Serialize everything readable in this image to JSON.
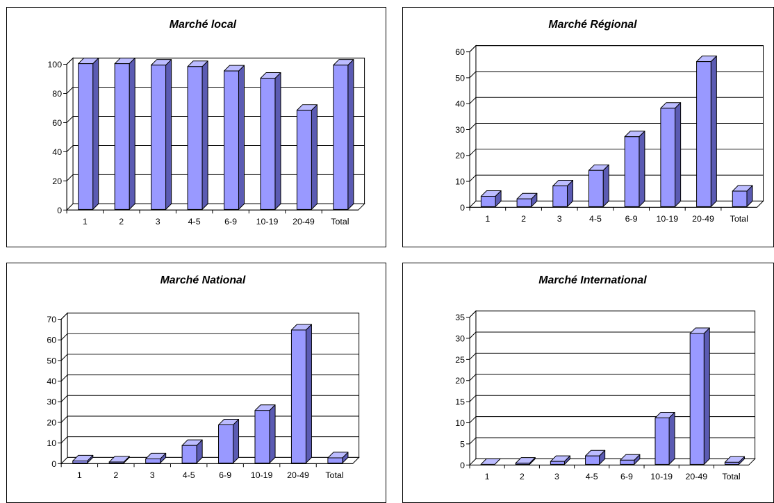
{
  "colors": {
    "bar_front": "#9999ff",
    "bar_side": "#5b5bb3",
    "bar_top": "#bcbcff",
    "bar_stroke": "#000000",
    "plot_background": "#ffffff",
    "gridline": "#000000",
    "floor": "#c0c0c0"
  },
  "chart_data": [
    {
      "type": "bar",
      "variant": "3d-column",
      "title": "Marché local",
      "categories": [
        "1",
        "2",
        "3",
        "4-5",
        "6-9",
        "10-19",
        "20-49",
        "Total"
      ],
      "values": [
        100,
        100,
        99,
        98,
        95,
        90,
        68,
        99
      ],
      "ylim": [
        0,
        100
      ],
      "yticks": [
        0,
        20,
        40,
        60,
        80,
        100
      ],
      "xlabel": "",
      "ylabel": "",
      "grid": true,
      "legend": false
    },
    {
      "type": "bar",
      "variant": "3d-column",
      "title": "Marché Régional",
      "categories": [
        "1",
        "2",
        "3",
        "4-5",
        "6-9",
        "10-19",
        "20-49",
        "Total"
      ],
      "values": [
        4,
        3,
        8,
        14,
        27,
        38,
        56,
        6
      ],
      "ylim": [
        0,
        60
      ],
      "yticks": [
        0,
        10,
        20,
        30,
        40,
        50,
        60
      ],
      "xlabel": "",
      "ylabel": "",
      "grid": true,
      "legend": false
    },
    {
      "type": "bar",
      "variant": "3d-column",
      "title": "Marché National",
      "categories": [
        "1",
        "2",
        "3",
        "4-5",
        "6-9",
        "10-19",
        "20-49",
        "Total"
      ],
      "values": [
        1,
        0.5,
        2,
        8.5,
        18.5,
        25.5,
        64.5,
        2.5
      ],
      "ylim": [
        0,
        70
      ],
      "yticks": [
        0,
        10,
        20,
        30,
        40,
        50,
        60,
        70
      ],
      "xlabel": "",
      "ylabel": "",
      "grid": true,
      "legend": false
    },
    {
      "type": "bar",
      "variant": "3d-column",
      "title": "Marché International",
      "categories": [
        "1",
        "2",
        "3",
        "4-5",
        "6-9",
        "10-19",
        "20-49",
        "Total"
      ],
      "values": [
        0,
        0.3,
        0.7,
        2,
        1,
        11,
        31,
        0.5
      ],
      "ylim": [
        0,
        35
      ],
      "yticks": [
        0,
        5,
        10,
        15,
        20,
        25,
        30,
        35
      ],
      "xlabel": "",
      "ylabel": "",
      "grid": true,
      "legend": false
    }
  ]
}
